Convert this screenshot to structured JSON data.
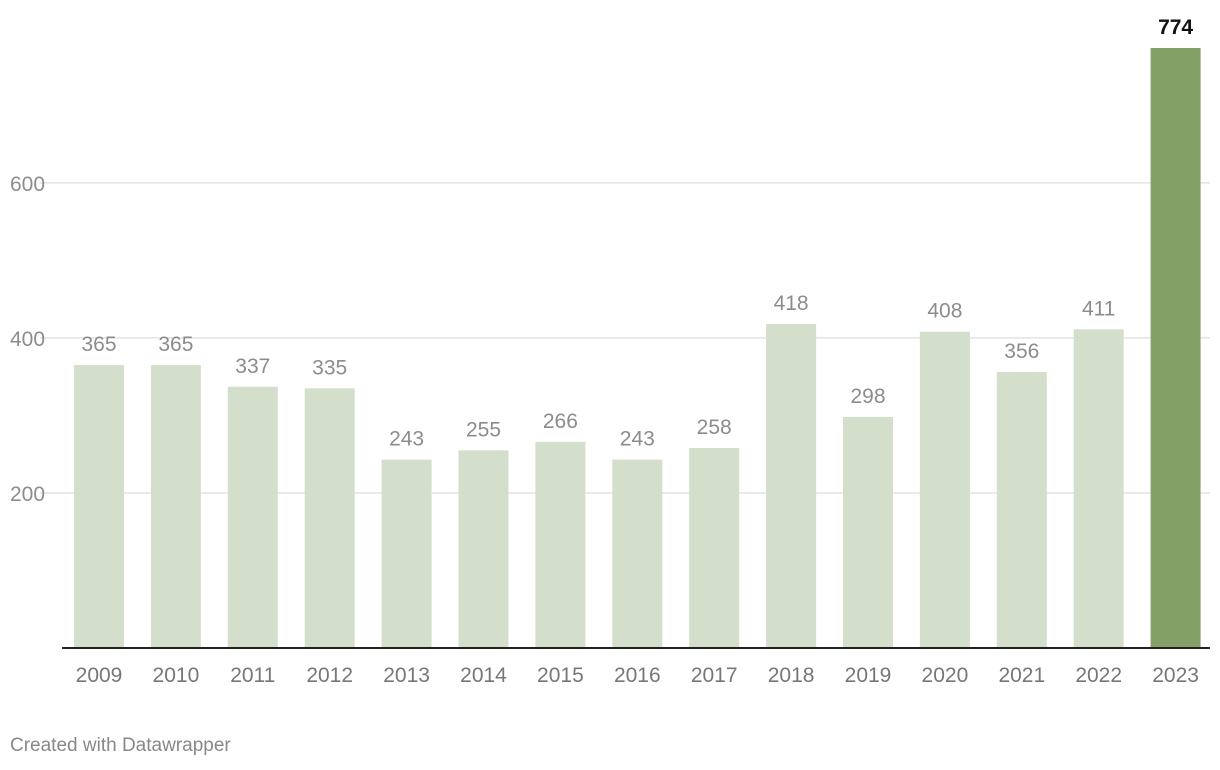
{
  "chart_data": {
    "type": "bar",
    "title": "",
    "xlabel": "",
    "ylabel": "",
    "categories": [
      "2009",
      "2010",
      "2011",
      "2012",
      "2013",
      "2014",
      "2015",
      "2016",
      "2017",
      "2018",
      "2019",
      "2020",
      "2021",
      "2022",
      "2023"
    ],
    "values": [
      365,
      365,
      337,
      335,
      243,
      255,
      266,
      243,
      258,
      418,
      298,
      408,
      356,
      411,
      774
    ],
    "highlight_index": 14,
    "ylim": [
      0,
      774
    ],
    "yticks": [
      200,
      400,
      600
    ],
    "grid": true,
    "colors": {
      "bar": "#d3dfcb",
      "highlight": "#83a066",
      "label": "#8c8c8c",
      "highlight_label": "#111111",
      "gridline": "#e3e3e3",
      "axis": "#222222"
    }
  },
  "footer": {
    "credit": "Created with Datawrapper"
  }
}
